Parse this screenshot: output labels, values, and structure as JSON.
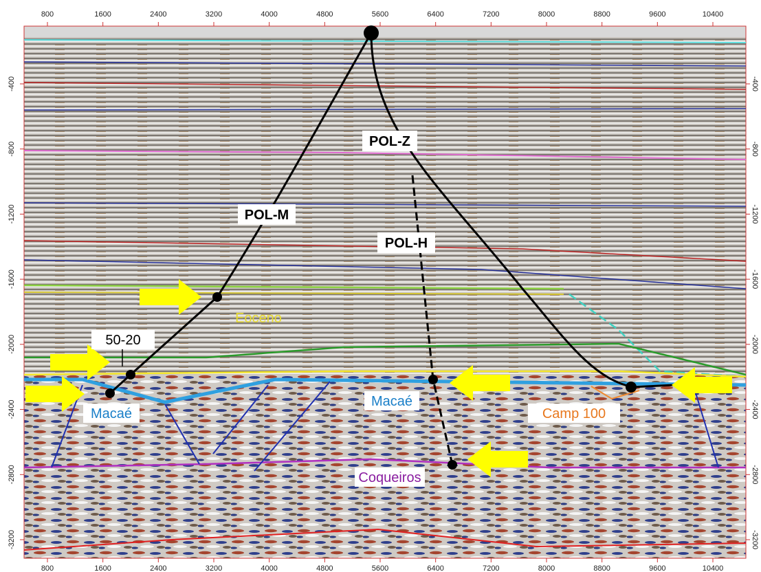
{
  "x_axis": {
    "ticks": [
      800,
      1600,
      2400,
      3200,
      4000,
      4800,
      5600,
      6400,
      7200,
      8000,
      8800,
      9600,
      10400
    ]
  },
  "y_axis": {
    "ticks": [
      -400,
      -800,
      -1200,
      -1600,
      -2000,
      -2400,
      -2800,
      -3200
    ]
  },
  "labels": {
    "pol_z": "POL-Z",
    "pol_m": "POL-M",
    "pol_h": "POL-H",
    "eoceno": "Eoceno",
    "well_50_20": "50-20",
    "macae_left": "Macaé",
    "macae_center": "Macaé",
    "camp_100": "Camp 100",
    "coqueiros": "Coqueiros"
  }
}
